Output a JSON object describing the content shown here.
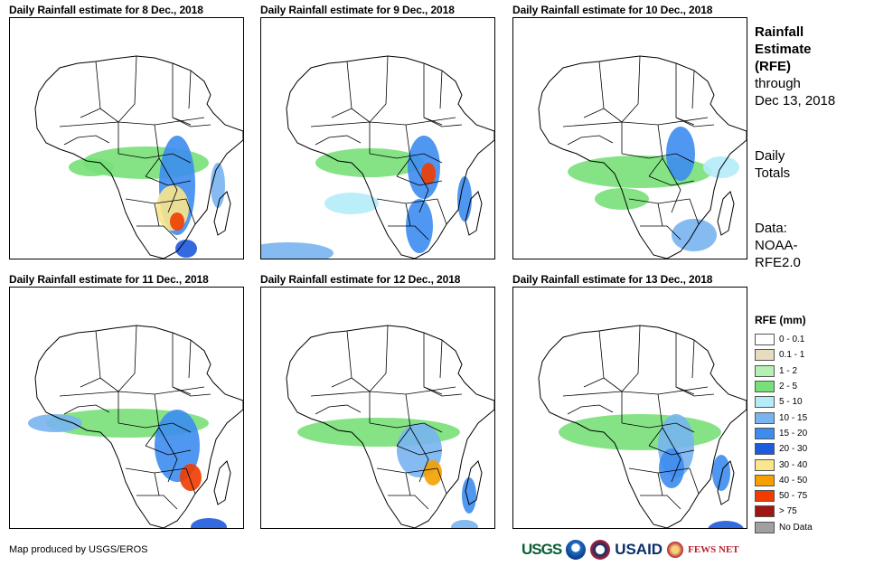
{
  "panels": [
    {
      "title": "Daily Rainfall estimate for 8 Dec., 2018"
    },
    {
      "title": "Daily Rainfall estimate for 9 Dec., 2018"
    },
    {
      "title": "Daily Rainfall estimate for 10 Dec., 2018"
    },
    {
      "title": "Daily Rainfall estimate for 11 Dec., 2018"
    },
    {
      "title": "Daily Rainfall estimate for 12 Dec., 2018"
    },
    {
      "title": "Daily Rainfall estimate for 13 Dec., 2018"
    }
  ],
  "side": {
    "heading1": "Rainfall",
    "heading2": "Estimate",
    "heading3": "(RFE)",
    "through1": "through",
    "through2": "Dec 13, 2018",
    "daily1": "Daily",
    "daily2": "Totals",
    "data1": "Data:",
    "data2": "NOAA-",
    "data3": "RFE2.0"
  },
  "legend": {
    "title": "RFE (mm)",
    "items": [
      {
        "label": "0 - 0.1",
        "color": "#ffffff"
      },
      {
        "label": "0.1 - 1",
        "color": "#e8dcc0"
      },
      {
        "label": "1 - 2",
        "color": "#b4f0b4"
      },
      {
        "label": "2 - 5",
        "color": "#78e078"
      },
      {
        "label": "5 - 10",
        "color": "#b4ecf8"
      },
      {
        "label": "10 - 15",
        "color": "#78b4f0"
      },
      {
        "label": "15 - 20",
        "color": "#3c8cf0"
      },
      {
        "label": "20 - 30",
        "color": "#1e5adc"
      },
      {
        "label": "30 - 40",
        "color": "#fae68c"
      },
      {
        "label": "40 - 50",
        "color": "#f5a000"
      },
      {
        "label": "50 - 75",
        "color": "#f03c00"
      },
      {
        "label": "> 75",
        "color": "#a01414"
      },
      {
        "label": "No Data",
        "color": "#a0a0a0"
      }
    ]
  },
  "credit": "Map produced by USGS/EROS",
  "logos": {
    "usgs": "USGS",
    "usaid": "USAID",
    "fews": "FEWS NET"
  }
}
